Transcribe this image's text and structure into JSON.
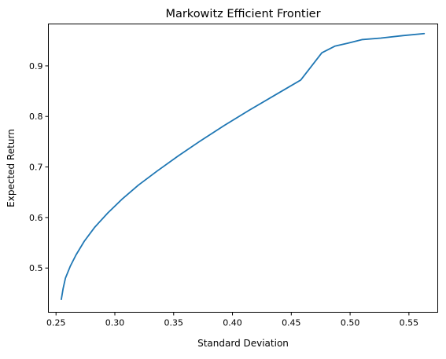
{
  "chart_data": {
    "type": "line",
    "title": "Markowitz Efficient Frontier",
    "xlabel": "Standard Deviation",
    "ylabel": "Expected Return",
    "xlim": [
      0.2435,
      0.5745
    ],
    "ylim": [
      0.4125,
      0.983
    ],
    "xticks": [
      "0.25",
      "0.30",
      "0.35",
      "0.40",
      "0.45",
      "0.50",
      "0.55"
    ],
    "yticks": [
      "0.5",
      "0.6",
      "0.7",
      "0.8",
      "0.9"
    ],
    "grid": false,
    "line_color": "#1f77b4",
    "series": [
      {
        "x": [
          0.2545,
          0.256,
          0.258,
          0.262,
          0.267,
          0.274,
          0.283,
          0.294,
          0.306,
          0.32,
          0.336,
          0.354,
          0.373,
          0.393,
          0.414,
          0.436,
          0.458,
          0.476,
          0.487,
          0.498,
          0.51,
          0.526,
          0.545,
          0.563
        ],
        "y": [
          0.438,
          0.459,
          0.48,
          0.503,
          0.526,
          0.553,
          0.581,
          0.609,
          0.636,
          0.664,
          0.692,
          0.722,
          0.752,
          0.782,
          0.812,
          0.842,
          0.872,
          0.926,
          0.939,
          0.945,
          0.952,
          0.955,
          0.96,
          0.964
        ]
      }
    ]
  }
}
